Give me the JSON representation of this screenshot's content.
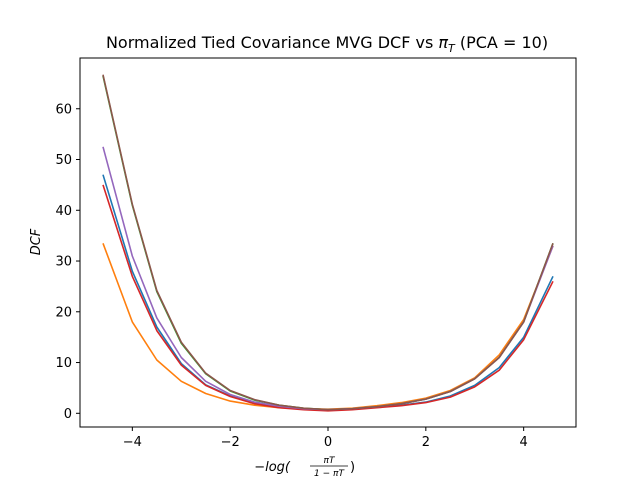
{
  "chart_data": {
    "type": "line",
    "title": {
      "prefix": "Normalized Tied Covariance MVG DCF vs ",
      "symbol": "π",
      "subscript": "T",
      "suffix": " (PCA = 10)"
    },
    "xlabel": {
      "prefix": "−log(",
      "numerator": "πT",
      "denominator": "1 − πT",
      "suffix": ")"
    },
    "ylabel": "DCF",
    "xlim": [
      -5.07,
      5.07
    ],
    "ylim": [
      -2.7,
      70
    ],
    "xticks": [
      -4,
      -2,
      0,
      2,
      4
    ],
    "xtick_labels": [
      "−4",
      "−2",
      "0",
      "2",
      "4"
    ],
    "yticks": [
      0,
      10,
      20,
      30,
      40,
      50,
      60
    ],
    "ytick_labels": [
      "0",
      "10",
      "20",
      "30",
      "40",
      "50",
      "60"
    ],
    "grid": false,
    "legend": "none",
    "series": [
      {
        "color": "#1f77b4",
        "x": [
          -4.6,
          -4.0,
          -3.5,
          -3.0,
          -2.5,
          -2.0,
          -1.5,
          -1.0,
          -0.5,
          0.0,
          0.5,
          1.0,
          1.5,
          2.0,
          2.5,
          3.0,
          3.5,
          4.0,
          4.6
        ],
        "y": [
          47.0,
          28.0,
          17.0,
          9.8,
          5.6,
          3.4,
          2.0,
          1.2,
          0.8,
          0.55,
          0.8,
          1.2,
          1.6,
          2.2,
          3.4,
          5.5,
          9.0,
          15.0,
          27.0
        ]
      },
      {
        "color": "#ff7f0e",
        "x": [
          -4.6,
          -4.0,
          -3.5,
          -3.0,
          -2.5,
          -2.0,
          -1.5,
          -1.0,
          -0.5,
          0.0,
          0.5,
          1.0,
          1.5,
          2.0,
          2.5,
          3.0,
          3.5,
          4.0,
          4.6
        ],
        "y": [
          33.5,
          18.0,
          10.5,
          6.3,
          3.9,
          2.4,
          1.6,
          1.1,
          0.9,
          0.8,
          1.0,
          1.5,
          2.1,
          3.0,
          4.5,
          7.0,
          11.5,
          18.5,
          33.0
        ]
      },
      {
        "color": "#2ca02c",
        "x": [
          -4.6,
          -4.0,
          -3.5,
          -3.0,
          -2.5,
          -2.0,
          -1.5,
          -1.0,
          -0.5,
          0.0,
          0.5,
          1.0,
          1.5,
          2.0,
          2.5,
          3.0,
          3.5,
          4.0,
          4.6
        ],
        "y": [
          66.5,
          41.0,
          24.0,
          13.8,
          7.8,
          4.4,
          2.6,
          1.6,
          1.0,
          0.7,
          0.9,
          1.3,
          1.9,
          2.8,
          4.3,
          6.8,
          11.0,
          18.0,
          33.5
        ]
      },
      {
        "color": "#d62728",
        "x": [
          -4.6,
          -4.0,
          -3.5,
          -3.0,
          -2.5,
          -2.0,
          -1.5,
          -1.0,
          -0.5,
          0.0,
          0.5,
          1.0,
          1.5,
          2.0,
          2.5,
          3.0,
          3.5,
          4.0,
          4.6
        ],
        "y": [
          45.0,
          27.0,
          16.3,
          9.5,
          5.5,
          3.3,
          1.9,
          1.1,
          0.7,
          0.5,
          0.7,
          1.1,
          1.5,
          2.1,
          3.2,
          5.2,
          8.5,
          14.5,
          26.0
        ]
      },
      {
        "color": "#9467bd",
        "x": [
          -4.6,
          -4.0,
          -3.5,
          -3.0,
          -2.5,
          -2.0,
          -1.5,
          -1.0,
          -0.5,
          0.0,
          0.5,
          1.0,
          1.5,
          2.0,
          2.5,
          3.0,
          3.5,
          4.0,
          4.6
        ],
        "y": [
          52.5,
          31.0,
          18.8,
          11.0,
          6.3,
          3.7,
          2.2,
          1.4,
          0.9,
          0.7,
          0.9,
          1.3,
          1.9,
          2.8,
          4.3,
          6.8,
          11.0,
          18.0,
          33.0
        ]
      },
      {
        "color": "#8c564b",
        "x": [
          -4.6,
          -4.0,
          -3.5,
          -3.0,
          -2.5,
          -2.0,
          -1.5,
          -1.0,
          -0.5,
          0.0,
          0.5,
          1.0,
          1.5,
          2.0,
          2.5,
          3.0,
          3.5,
          4.0,
          4.6
        ],
        "y": [
          66.7,
          41.2,
          24.2,
          14.0,
          7.9,
          4.5,
          2.7,
          1.6,
          1.0,
          0.7,
          0.9,
          1.3,
          1.9,
          2.8,
          4.3,
          6.8,
          11.0,
          18.0,
          33.5
        ]
      }
    ]
  }
}
